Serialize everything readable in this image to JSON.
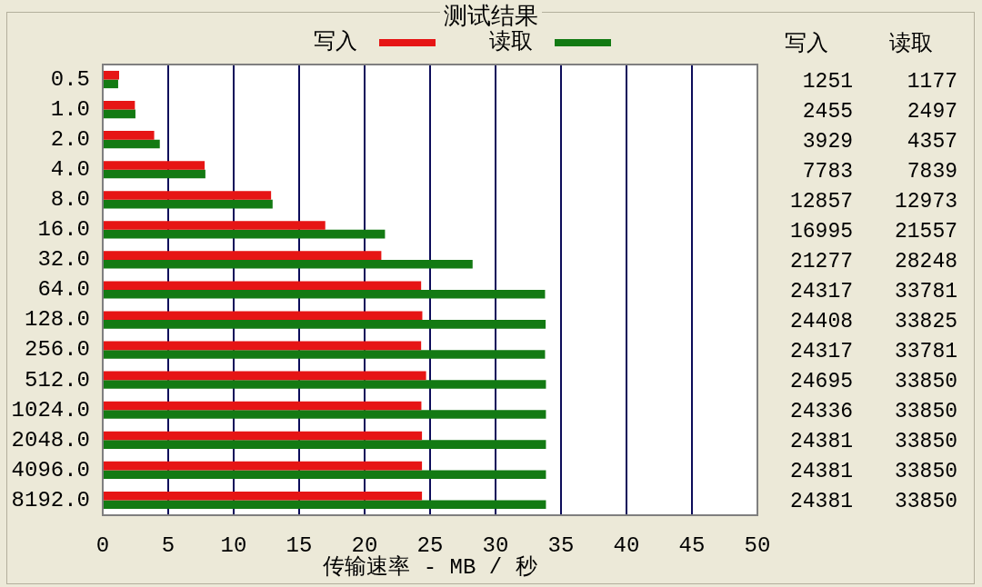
{
  "chart_data": [
    {
      "type": "bar",
      "orientation": "horizontal",
      "title": "测试结果",
      "xlabel": "传输速率 - MB / 秒",
      "categories": [
        "0.5",
        "1.0",
        "2.0",
        "4.0",
        "8.0",
        "16.0",
        "32.0",
        "64.0",
        "128.0",
        "256.0",
        "512.0",
        "1024.0",
        "2048.0",
        "4096.0",
        "8192.0"
      ],
      "series": [
        {
          "name": "写入",
          "color": "#e61515",
          "values": [
            1.251,
            2.455,
            3.929,
            7.783,
            12.857,
            16.995,
            21.277,
            24.317,
            24.408,
            24.317,
            24.695,
            24.336,
            24.381,
            24.381,
            24.381
          ]
        },
        {
          "name": "读取",
          "color": "#137a13",
          "values": [
            1.177,
            2.497,
            4.357,
            7.839,
            12.973,
            21.557,
            28.248,
            33.781,
            33.825,
            33.781,
            33.85,
            33.85,
            33.85,
            33.85,
            33.85
          ]
        }
      ],
      "xlim": [
        0,
        50
      ],
      "xticks": [
        0,
        5,
        10,
        15,
        20,
        25,
        30,
        35,
        40,
        45,
        50
      ],
      "grid": "x",
      "legend": "top"
    },
    {
      "type": "other",
      "annotations": [
        "写入",
        "读取",
        "1251",
        "1177",
        "2455",
        "2497",
        "3929",
        "4357",
        "7783",
        "7839",
        "12857",
        "12973",
        "16995",
        "21557",
        "21277",
        "28248",
        "24317",
        "33781",
        "24408",
        "33825",
        "24317",
        "33781",
        "24695",
        "33850",
        "24336",
        "33850",
        "24381",
        "33850",
        "24381",
        "33850",
        "24381",
        "33850"
      ]
    }
  ]
}
